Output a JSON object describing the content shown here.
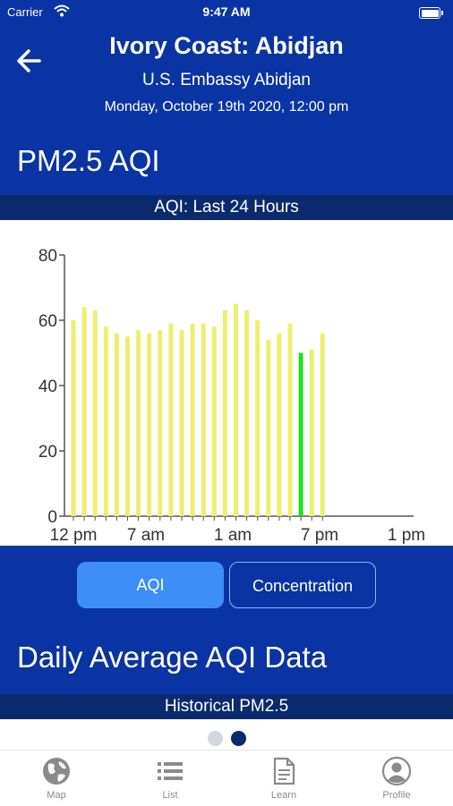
{
  "status_bar": {
    "carrier": "Carrier",
    "time": "9:47 AM"
  },
  "header": {
    "title": "Ivory Coast: Abidjan",
    "station": "U.S. Embassy Abidjan",
    "datetime": "Monday, October 19th 2020, 12:00 pm"
  },
  "pollutant_title": "PM2.5 AQI",
  "chart_section_label": "AQI: Last 24 Hours",
  "chart_data": {
    "type": "bar",
    "ylim": [
      0,
      80
    ],
    "yticks": [
      0,
      20,
      40,
      60,
      80
    ],
    "xtick_labels": [
      "12 pm",
      "7 am",
      "1 am",
      "7 pm",
      "1 pm"
    ],
    "values": [
      60,
      64,
      63,
      58,
      56,
      55,
      57,
      56,
      57,
      59,
      57,
      59,
      59,
      58,
      63,
      65,
      63,
      60,
      54,
      56,
      59,
      50,
      51,
      56
    ],
    "highlight_index": 21,
    "colors": {
      "bar": "#eeee6e",
      "highlight": "#22dd22",
      "axis": "#555555"
    }
  },
  "toggle": {
    "aqi_label": "AQI",
    "concentration_label": "Concentration",
    "selected": "AQI"
  },
  "daily_title": "Daily Average AQI Data",
  "historical_label": "Historical PM2.5",
  "pager": {
    "count": 2,
    "active_index": 1
  },
  "tabs": [
    {
      "label": "Map",
      "icon": "globe-icon"
    },
    {
      "label": "List",
      "icon": "list-icon"
    },
    {
      "label": "Learn",
      "icon": "document-icon"
    },
    {
      "label": "Profile",
      "icon": "person-icon"
    }
  ],
  "colors": {
    "primary": "#0a34a3",
    "band": "#0b2a6e",
    "button_active": "#3d8ff5",
    "tab_inactive": "#8a8a8a"
  }
}
